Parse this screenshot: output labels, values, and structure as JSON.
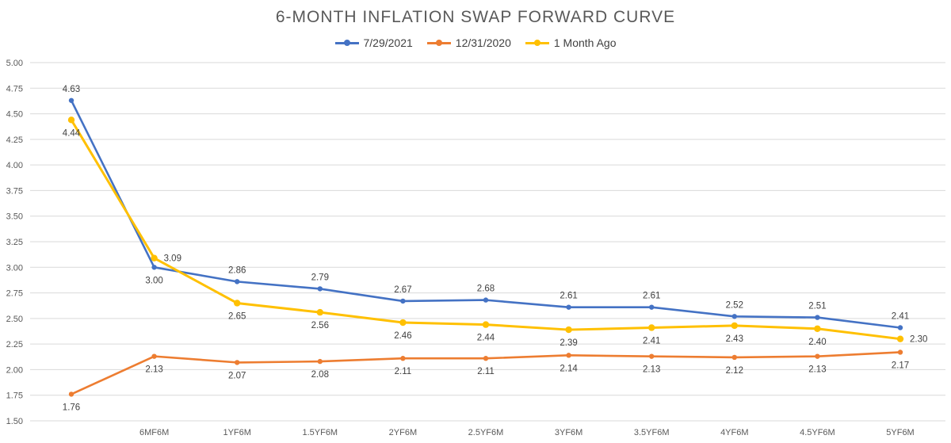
{
  "chart_data": {
    "type": "line",
    "title": "6-MONTH INFLATION SWAP FORWARD CURVE",
    "xlabel": "",
    "ylabel": "",
    "ylim": [
      1.5,
      5.0
    ],
    "yticks": [
      "1.50",
      "1.75",
      "2.00",
      "2.25",
      "2.50",
      "2.75",
      "3.00",
      "3.25",
      "3.50",
      "3.75",
      "4.00",
      "4.25",
      "4.50",
      "4.75",
      "5.00"
    ],
    "categories": [
      "",
      "6MF6M",
      "1YF6M",
      "1.5YF6M",
      "2YF6M",
      "2.5YF6M",
      "3YF6M",
      "3.5YF6M",
      "4YF6M",
      "4.5YF6M",
      "5YF6M"
    ],
    "legend_position": "top-center",
    "grid": true,
    "series": [
      {
        "name": "7/29/2021",
        "color": "#4472C4",
        "values": [
          4.63,
          3.0,
          2.86,
          2.79,
          2.67,
          2.68,
          2.61,
          2.61,
          2.52,
          2.51,
          2.41
        ],
        "labels": [
          "4.63",
          "3.00",
          "2.86",
          "2.79",
          "2.67",
          "2.68",
          "2.61",
          "2.61",
          "2.52",
          "2.51",
          "2.41"
        ],
        "label_pos": [
          "above",
          "below",
          "above",
          "above",
          "above",
          "above",
          "above",
          "above",
          "above",
          "above",
          "above"
        ]
      },
      {
        "name": "12/31/2020",
        "color": "#ED7D31",
        "values": [
          1.76,
          2.13,
          2.07,
          2.08,
          2.11,
          2.11,
          2.14,
          2.13,
          2.12,
          2.13,
          2.17
        ],
        "labels": [
          "1.76",
          "2.13",
          "2.07",
          "2.08",
          "2.11",
          "2.11",
          "2.14",
          "2.13",
          "2.12",
          "2.13",
          "2.17"
        ],
        "label_pos": [
          "below",
          "below",
          "below",
          "below",
          "below",
          "below",
          "below",
          "below",
          "below",
          "below",
          "below"
        ]
      },
      {
        "name": "1 Month Ago",
        "color": "#FFC000",
        "values": [
          4.44,
          3.09,
          2.65,
          2.56,
          2.46,
          2.44,
          2.39,
          2.41,
          2.43,
          2.4,
          2.3
        ],
        "labels": [
          "4.44",
          "3.09",
          "2.65",
          "2.56",
          "2.46",
          "2.44",
          "2.39",
          "2.41",
          "2.43",
          "2.40",
          "2.30"
        ],
        "label_pos": [
          "below",
          "right",
          "below",
          "below",
          "below",
          "below",
          "below",
          "below",
          "below",
          "below",
          "right"
        ]
      }
    ]
  }
}
